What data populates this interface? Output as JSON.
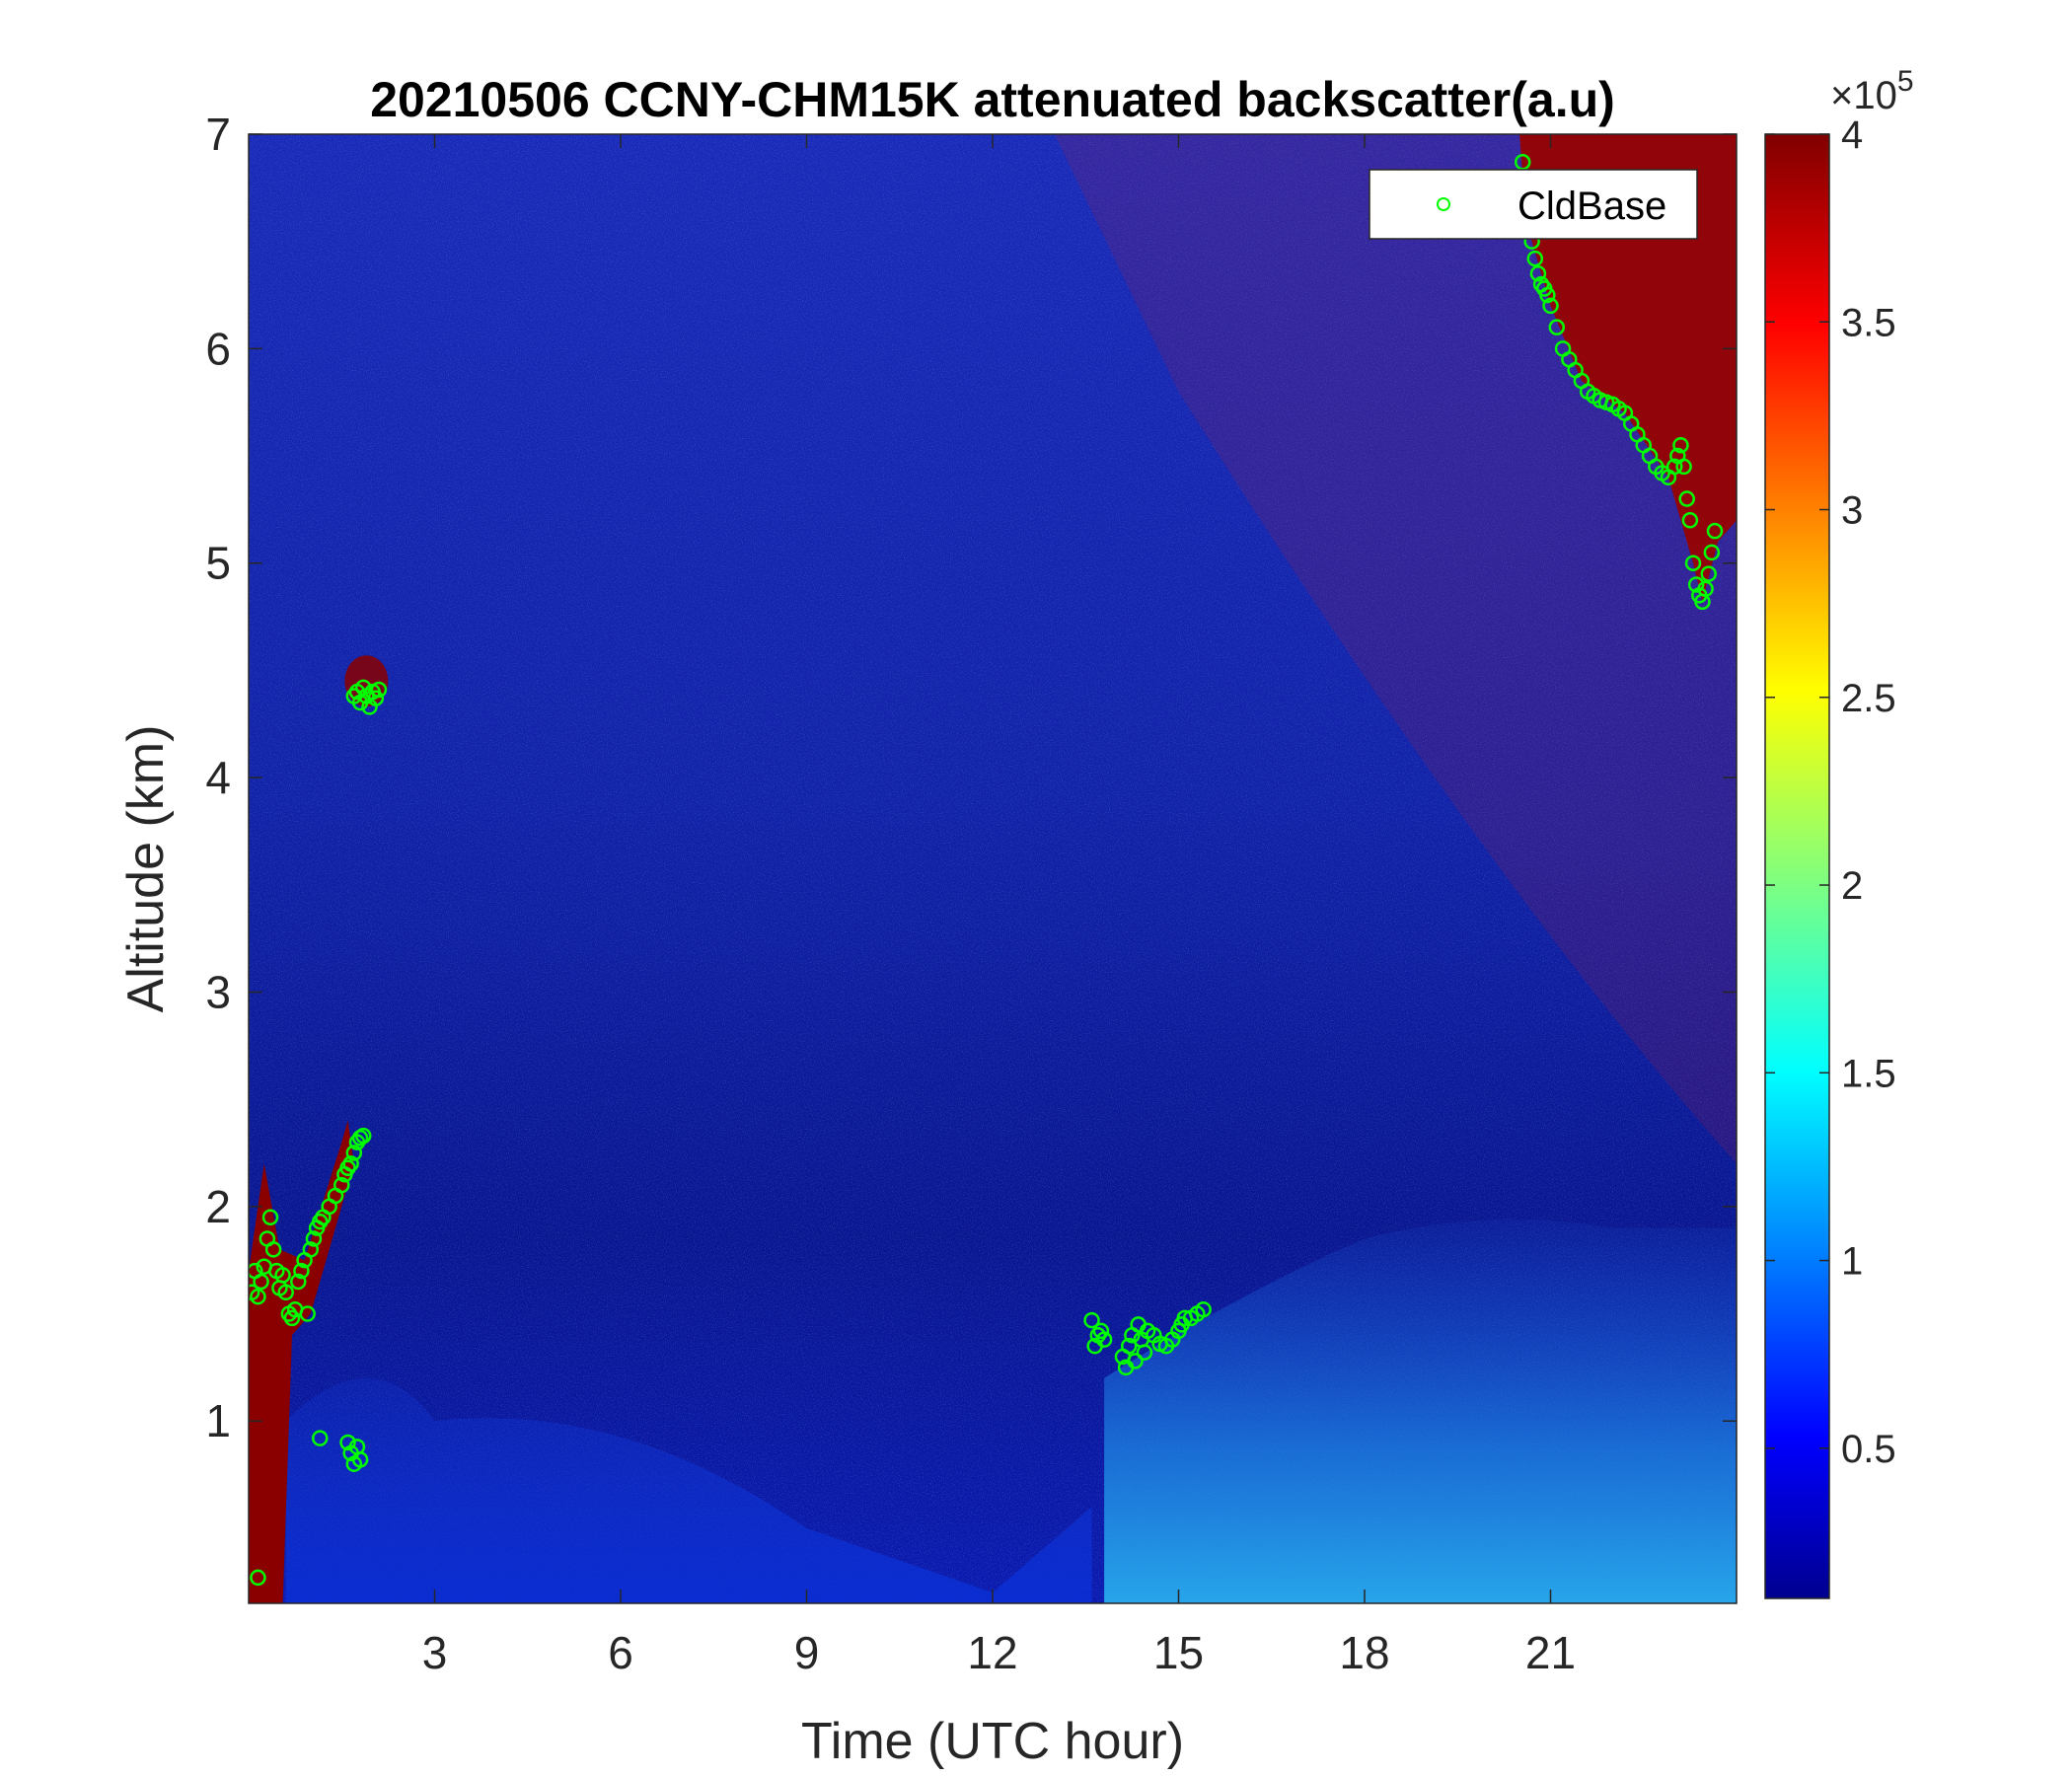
{
  "chart_data": {
    "type": "heatmap",
    "title": "20210506 CCNY-CHM15K attenuated backscatter(a.u)",
    "xlabel": "Time (UTC hour)",
    "ylabel": "Altitude (km)",
    "xlim": [
      0,
      24
    ],
    "ylim": [
      0.15,
      7
    ],
    "x_ticks": [
      3,
      6,
      9,
      12,
      15,
      18,
      21
    ],
    "y_ticks": [
      1,
      2,
      3,
      4,
      5,
      6,
      7
    ],
    "colorbar": {
      "colormap": "jet",
      "range": [
        0.1,
        4
      ],
      "ticks": [
        0.5,
        1,
        1.5,
        2,
        2.5,
        3,
        3.5,
        4
      ],
      "multiplier": "×10",
      "exponent": "5"
    },
    "legend": {
      "position": "top-right",
      "entries": [
        "CldBase"
      ]
    },
    "series": [
      {
        "name": "CldBase",
        "marker": "circle",
        "color": "#00ff00",
        "points": [
          [
            0.05,
            1.6
          ],
          [
            0.1,
            1.7
          ],
          [
            0.15,
            1.58
          ],
          [
            0.2,
            1.65
          ],
          [
            0.25,
            1.72
          ],
          [
            0.3,
            1.85
          ],
          [
            0.35,
            1.95
          ],
          [
            0.4,
            1.8
          ],
          [
            0.45,
            1.7
          ],
          [
            0.5,
            1.62
          ],
          [
            0.55,
            1.68
          ],
          [
            0.6,
            1.6
          ],
          [
            0.65,
            1.5
          ],
          [
            0.7,
            1.48
          ],
          [
            0.75,
            1.52
          ],
          [
            0.8,
            1.65
          ],
          [
            0.85,
            1.7
          ],
          [
            0.9,
            1.75
          ],
          [
            0.95,
            1.5
          ],
          [
            1.0,
            1.8
          ],
          [
            1.05,
            1.85
          ],
          [
            1.1,
            1.9
          ],
          [
            1.15,
            1.93
          ],
          [
            1.2,
            1.95
          ],
          [
            1.3,
            2.0
          ],
          [
            1.4,
            2.05
          ],
          [
            1.5,
            2.1
          ],
          [
            1.55,
            2.15
          ],
          [
            1.6,
            2.18
          ],
          [
            1.65,
            2.2
          ],
          [
            1.7,
            2.25
          ],
          [
            1.75,
            2.3
          ],
          [
            1.8,
            2.32
          ],
          [
            1.85,
            2.33
          ],
          [
            0.15,
            0.27
          ],
          [
            1.15,
            0.92
          ],
          [
            1.6,
            0.9
          ],
          [
            1.65,
            0.85
          ],
          [
            1.7,
            0.8
          ],
          [
            1.75,
            0.88
          ],
          [
            1.8,
            0.82
          ],
          [
            1.7,
            4.38
          ],
          [
            1.75,
            4.4
          ],
          [
            1.8,
            4.35
          ],
          [
            1.85,
            4.42
          ],
          [
            1.9,
            4.38
          ],
          [
            1.95,
            4.33
          ],
          [
            2.0,
            4.4
          ],
          [
            2.05,
            4.37
          ],
          [
            2.1,
            4.41
          ],
          [
            13.6,
            1.47
          ],
          [
            13.65,
            1.35
          ],
          [
            13.7,
            1.4
          ],
          [
            13.75,
            1.42
          ],
          [
            13.8,
            1.38
          ],
          [
            14.1,
            1.3
          ],
          [
            14.15,
            1.25
          ],
          [
            14.2,
            1.35
          ],
          [
            14.25,
            1.4
          ],
          [
            14.3,
            1.28
          ],
          [
            14.35,
            1.45
          ],
          [
            14.4,
            1.38
          ],
          [
            14.45,
            1.32
          ],
          [
            14.5,
            1.42
          ],
          [
            14.6,
            1.4
          ],
          [
            14.7,
            1.36
          ],
          [
            14.8,
            1.35
          ],
          [
            14.9,
            1.38
          ],
          [
            15.0,
            1.42
          ],
          [
            15.05,
            1.45
          ],
          [
            15.1,
            1.48
          ],
          [
            15.2,
            1.48
          ],
          [
            15.3,
            1.5
          ],
          [
            15.4,
            1.52
          ],
          [
            20.55,
            6.87
          ],
          [
            20.6,
            6.7
          ],
          [
            20.65,
            6.55
          ],
          [
            20.7,
            6.5
          ],
          [
            20.75,
            6.42
          ],
          [
            20.8,
            6.35
          ],
          [
            20.85,
            6.3
          ],
          [
            20.9,
            6.28
          ],
          [
            20.95,
            6.25
          ],
          [
            21.0,
            6.2
          ],
          [
            21.1,
            6.1
          ],
          [
            21.2,
            6.0
          ],
          [
            21.3,
            5.95
          ],
          [
            21.4,
            5.9
          ],
          [
            21.5,
            5.85
          ],
          [
            21.6,
            5.8
          ],
          [
            21.7,
            5.78
          ],
          [
            21.8,
            5.76
          ],
          [
            21.9,
            5.75
          ],
          [
            22.0,
            5.74
          ],
          [
            22.1,
            5.72
          ],
          [
            22.2,
            5.7
          ],
          [
            22.3,
            5.65
          ],
          [
            22.4,
            5.6
          ],
          [
            22.5,
            5.55
          ],
          [
            22.6,
            5.5
          ],
          [
            22.7,
            5.45
          ],
          [
            22.8,
            5.42
          ],
          [
            22.9,
            5.4
          ],
          [
            23.0,
            5.45
          ],
          [
            23.05,
            5.5
          ],
          [
            23.1,
            5.55
          ],
          [
            23.15,
            5.45
          ],
          [
            23.2,
            5.3
          ],
          [
            23.25,
            5.2
          ],
          [
            23.3,
            5.0
          ],
          [
            23.35,
            4.9
          ],
          [
            23.4,
            4.85
          ],
          [
            23.45,
            4.82
          ],
          [
            23.5,
            4.88
          ],
          [
            23.55,
            4.95
          ],
          [
            23.6,
            5.05
          ],
          [
            23.65,
            5.15
          ]
        ]
      }
    ]
  }
}
